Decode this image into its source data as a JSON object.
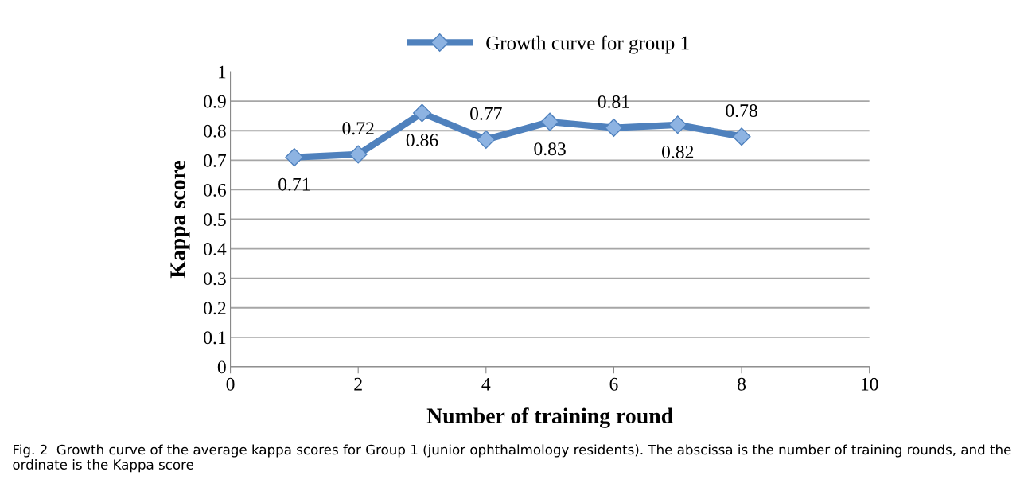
{
  "chart_data": {
    "type": "line",
    "xlabel": "Number of training round",
    "ylabel": "Kappa score",
    "x": [
      1,
      2,
      3,
      4,
      5,
      6,
      7,
      8
    ],
    "series": [
      {
        "name": "Growth curve for group 1",
        "color": "#4f81bd",
        "values": [
          0.71,
          0.72,
          0.86,
          0.77,
          0.83,
          0.81,
          0.82,
          0.78
        ]
      }
    ],
    "xlim": [
      0,
      10
    ],
    "xticks": [
      0,
      2,
      4,
      6,
      8,
      10
    ],
    "ylim": [
      0,
      1
    ],
    "yticks": [
      0,
      0.1,
      0.2,
      0.3,
      0.4,
      0.5,
      0.6,
      0.7,
      0.8,
      0.9,
      1
    ],
    "grid": "y",
    "legend": "top",
    "marker": "diamond",
    "line_style": "solid",
    "data_labels": true,
    "annotations": [
      "Fig. 2  Growth curve of the average kappa scores for Group 1 (junior ophthalmology residents). The abscissa is the number of training rounds, and the ordinate is the Kappa score"
    ]
  }
}
